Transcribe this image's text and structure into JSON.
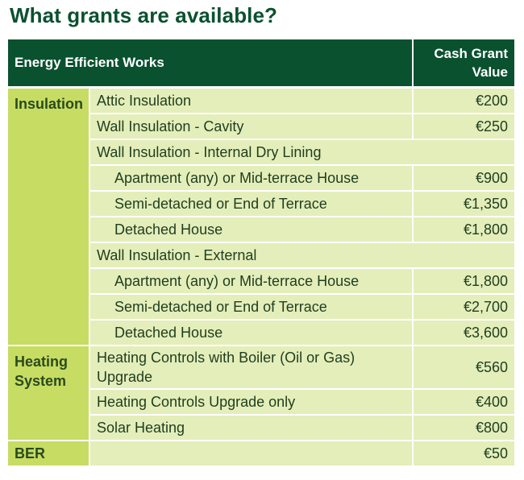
{
  "title": "What grants are available?",
  "header": {
    "works": "Energy Efficient Works",
    "cash": "Cash Grant Value"
  },
  "categories": {
    "insulation": "Insulation",
    "heating": "Heating System",
    "ber": "BER"
  },
  "rows": [
    {
      "label": "Attic Insulation",
      "value": "€200"
    },
    {
      "label": "Wall Insulation - Cavity",
      "value": "€250"
    },
    {
      "label": "Wall Insulation - Internal Dry Lining",
      "value": ""
    },
    {
      "label": "Apartment (any) or Mid-terrace House",
      "value": "€900"
    },
    {
      "label": "Semi-detached or End of Terrace",
      "value": "€1,350"
    },
    {
      "label": "Detached House",
      "value": "€1,800"
    },
    {
      "label": "Wall Insulation - External",
      "value": ""
    },
    {
      "label": "Apartment (any) or Mid-terrace House",
      "value": "€1,800"
    },
    {
      "label": "Semi-detached or End of Terrace",
      "value": "€2,700"
    },
    {
      "label": "Detached House",
      "value": "€3,600"
    },
    {
      "label": "Heating Controls with Boiler (Oil or Gas) Upgrade",
      "value": "€560"
    },
    {
      "label": "Heating Controls Upgrade only",
      "value": "€400"
    },
    {
      "label": "Solar Heating",
      "value": "€800"
    },
    {
      "label": "",
      "value": "€50"
    }
  ],
  "colors": {
    "header_green": "#0a5130",
    "category_green": "#c6dc63",
    "row_green": "#e4eeba"
  }
}
